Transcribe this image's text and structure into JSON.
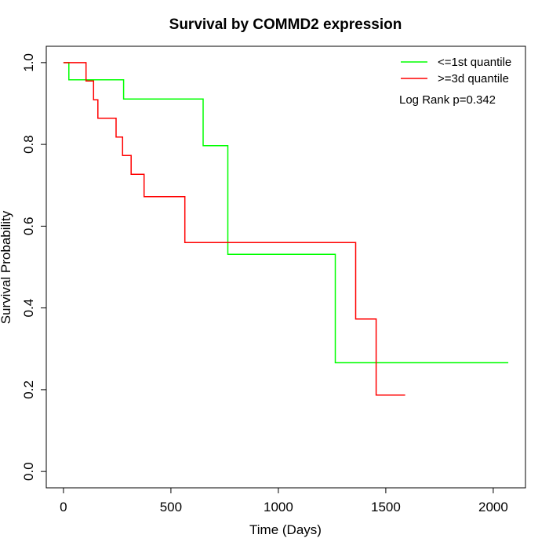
{
  "chart_data": {
    "type": "line",
    "title": "Survival by COMMD2 expression",
    "xlabel": "Time (Days)",
    "ylabel": "Survival Probability",
    "xlim": [
      -80,
      2150
    ],
    "ylim": [
      -0.04,
      1.04
    ],
    "x_ticks": [
      0,
      500,
      1000,
      1500,
      2000
    ],
    "x_tick_labels": [
      "0",
      "500",
      "1000",
      "1500",
      "2000"
    ],
    "y_ticks": [
      0.0,
      0.2,
      0.4,
      0.6,
      0.8,
      1.0
    ],
    "y_tick_labels": [
      "0.0",
      "0.2",
      "0.4",
      "0.6",
      "0.8",
      "1.0"
    ],
    "grid": false,
    "legend_position": "top-right",
    "annotation": "Log Rank p=0.342",
    "series": [
      {
        "name": "<=1st quantile",
        "color": "#00ff00",
        "x": [
          0,
          25,
          25,
          280,
          280,
          650,
          650,
          765,
          765,
          1265,
          1265,
          2070
        ],
        "y": [
          1.0,
          1.0,
          0.958,
          0.958,
          0.911,
          0.911,
          0.797,
          0.797,
          0.531,
          0.531,
          0.266,
          0.266
        ]
      },
      {
        "name": ">=3d quantile",
        "color": "#ff0000",
        "x": [
          0,
          105,
          105,
          140,
          140,
          160,
          160,
          245,
          245,
          275,
          275,
          315,
          315,
          375,
          375,
          565,
          565,
          1360,
          1360,
          1455,
          1455,
          1590
        ],
        "y": [
          1.0,
          1.0,
          0.955,
          0.955,
          0.909,
          0.909,
          0.864,
          0.864,
          0.818,
          0.818,
          0.773,
          0.773,
          0.727,
          0.727,
          0.672,
          0.672,
          0.56,
          0.56,
          0.373,
          0.373,
          0.187,
          0.187
        ]
      }
    ]
  }
}
